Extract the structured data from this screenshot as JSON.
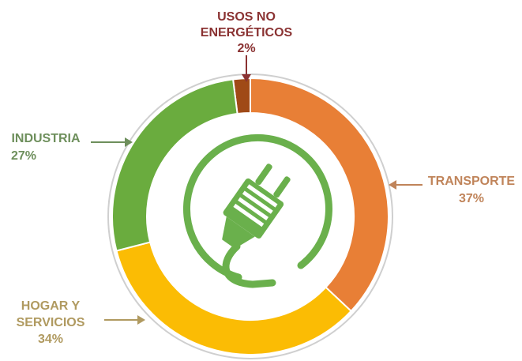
{
  "chart_data": {
    "type": "pie",
    "title": "",
    "categories": [
      "TRANSPORTE",
      "HOGAR Y SERVICIOS",
      "INDUSTRIA",
      "USOS NO ENERGÉTICOS"
    ],
    "values": [
      37,
      34,
      27,
      2
    ],
    "value_labels": [
      "37%",
      "34%",
      "27%",
      "2%"
    ],
    "label_lines": [
      [
        "TRANSPORTE"
      ],
      [
        "HOGAR Y",
        "SERVICIOS"
      ],
      [
        "INDUSTRIA"
      ],
      [
        "USOS NO",
        "ENERGÉTICOS"
      ]
    ],
    "colors": [
      "#e87f36",
      "#fbbc04",
      "#6aac3e",
      "#a04a17"
    ],
    "label_colors": [
      "#c0845a",
      "#b09a60",
      "#6e8f5c",
      "#8a3232"
    ],
    "start_category": "USOS NO ENERGÉTICOS",
    "direction": "clockwise",
    "style": "donut",
    "center_icon": "electric-plug-icon",
    "center_icon_color": "#6ab04c"
  }
}
